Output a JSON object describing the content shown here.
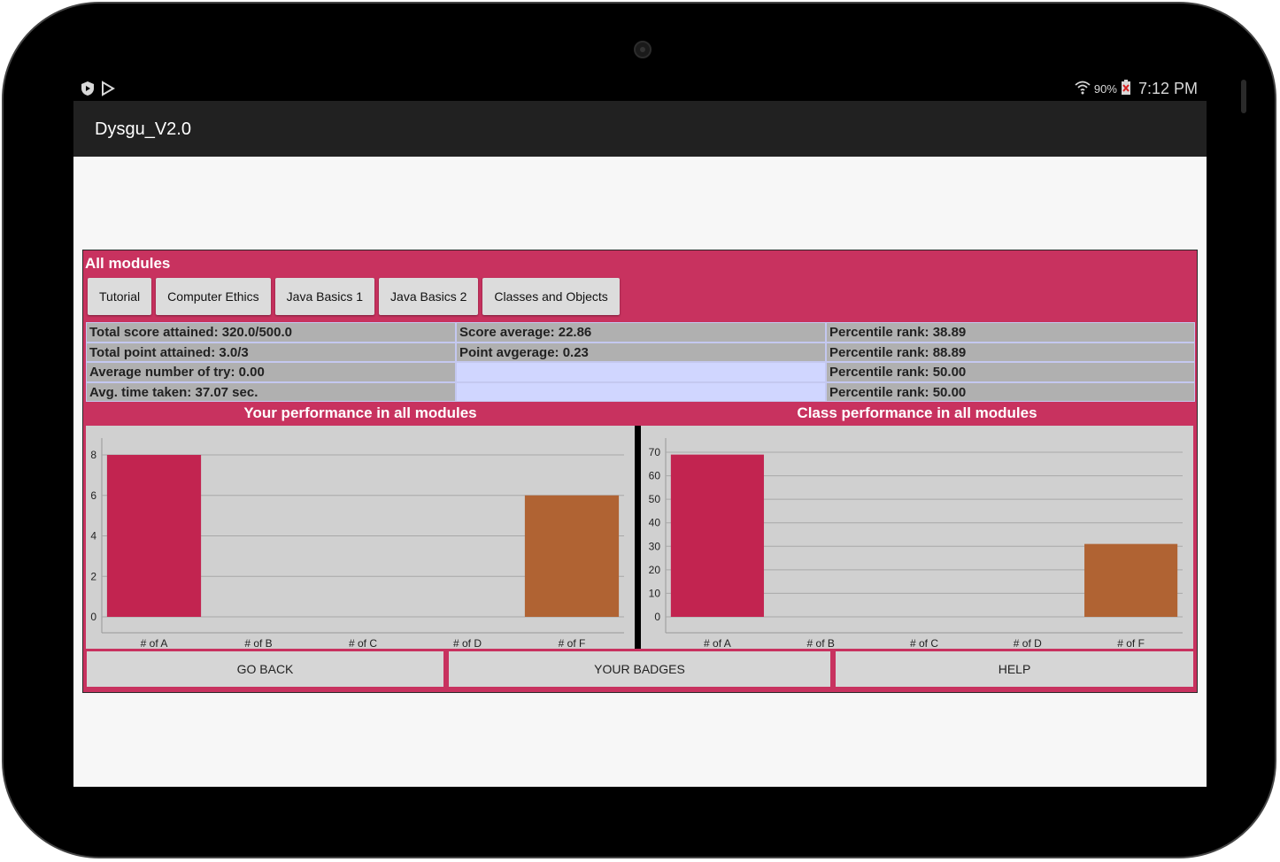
{
  "status": {
    "battery": "90%",
    "time": "7:12 PM",
    "icons": [
      "shield-icon",
      "play-store-icon",
      "wifi-icon",
      "battery-icon"
    ]
  },
  "app": {
    "title": "Dysgu_V2.0"
  },
  "panel": {
    "title": "All modules",
    "tabs": [
      "Tutorial",
      "Computer Ethics",
      "Java Basics 1",
      "Java Basics 2",
      "Classes and Objects"
    ]
  },
  "stats": {
    "row1": [
      "Total score attained: 320.0/500.0",
      "Score average: 22.86",
      "Percentile rank: 38.89"
    ],
    "row2": [
      "Total point attained: 3.0/3",
      "Point avgerage: 0.23",
      "Percentile rank: 88.89"
    ],
    "row3": [
      "Average number of try: 0.00",
      "",
      "Percentile rank: 50.00"
    ],
    "row4": [
      "Avg. time taken: 37.07 sec.",
      "",
      "Percentile rank: 50.00"
    ]
  },
  "charts": {
    "left_title": "Your performance in all modules",
    "right_title": "Class performance in all modules"
  },
  "buttons": {
    "back": "GO BACK",
    "badges": "YOUR BADGES",
    "help": "HELP"
  },
  "colors": {
    "accent": "#c8325f",
    "bar_a": "#c22450",
    "bar_f": "#b06333"
  },
  "chart_data": [
    {
      "type": "bar",
      "title": "Your performance in all modules",
      "categories": [
        "# of A",
        "# of B",
        "# of C",
        "# of D",
        "# of F"
      ],
      "values": [
        8,
        0,
        0,
        0,
        6
      ],
      "yticks": [
        0,
        2,
        4,
        6,
        8
      ],
      "ylim": [
        0,
        9
      ],
      "grid": true
    },
    {
      "type": "bar",
      "title": "Class performance in all modules",
      "categories": [
        "# of A",
        "# of B",
        "# of C",
        "# of D",
        "# of F"
      ],
      "values": [
        69,
        0,
        0,
        0,
        31
      ],
      "yticks": [
        0,
        10,
        20,
        30,
        40,
        50,
        60,
        70
      ],
      "ylim": [
        0,
        75
      ],
      "grid": true
    }
  ]
}
